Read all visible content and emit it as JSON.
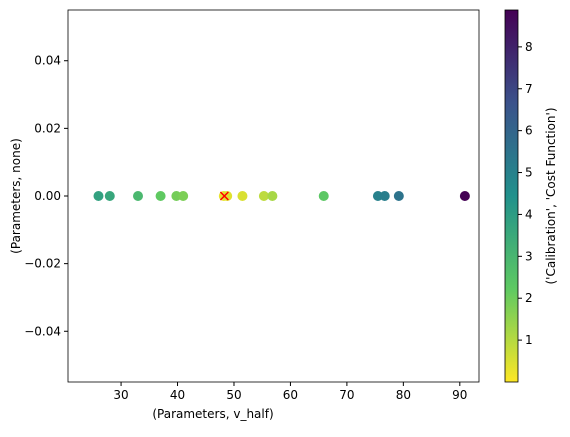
{
  "chart_data": {
    "type": "scatter",
    "xlabel": "(Parameters, v_half)",
    "ylabel": "(Parameters, none)",
    "x": [
      26,
      28,
      33,
      37,
      39.8,
      41,
      48.2,
      48.8,
      51.5,
      55.3,
      56.8,
      65.9,
      75.5,
      76.7,
      79.2,
      90.9
    ],
    "y": [
      0,
      0,
      0,
      0,
      0,
      0,
      0,
      0,
      0,
      0,
      0,
      0,
      0,
      0,
      0,
      0
    ],
    "c": [
      3.8,
      3.6,
      2.9,
      2.2,
      1.9,
      1.8,
      0.3,
      0.4,
      0.5,
      0.9,
      1.2,
      2.3,
      5.0,
      5.1,
      5.5,
      8.9
    ],
    "colormap": "viridis_r",
    "xlim": [
      20.6,
      93.4
    ],
    "ylim": [
      -0.055,
      0.055
    ],
    "xticks": [
      30,
      40,
      50,
      60,
      70,
      80,
      90
    ],
    "yticks": [
      {
        "value": -0.04,
        "label": "−0.04"
      },
      {
        "value": -0.02,
        "label": "−0.02"
      },
      {
        "value": 0,
        "label": "0.00"
      },
      0.02,
      0.04
    ],
    "marker": {
      "x": 48.3,
      "y": 0,
      "color": "#ff0000"
    },
    "colorbar": {
      "label": "('Calibration', 'Cost Function')",
      "lim": [
        0.0,
        8.88
      ],
      "ticks": [
        1,
        2,
        3,
        4,
        5,
        6,
        7,
        8
      ]
    }
  }
}
